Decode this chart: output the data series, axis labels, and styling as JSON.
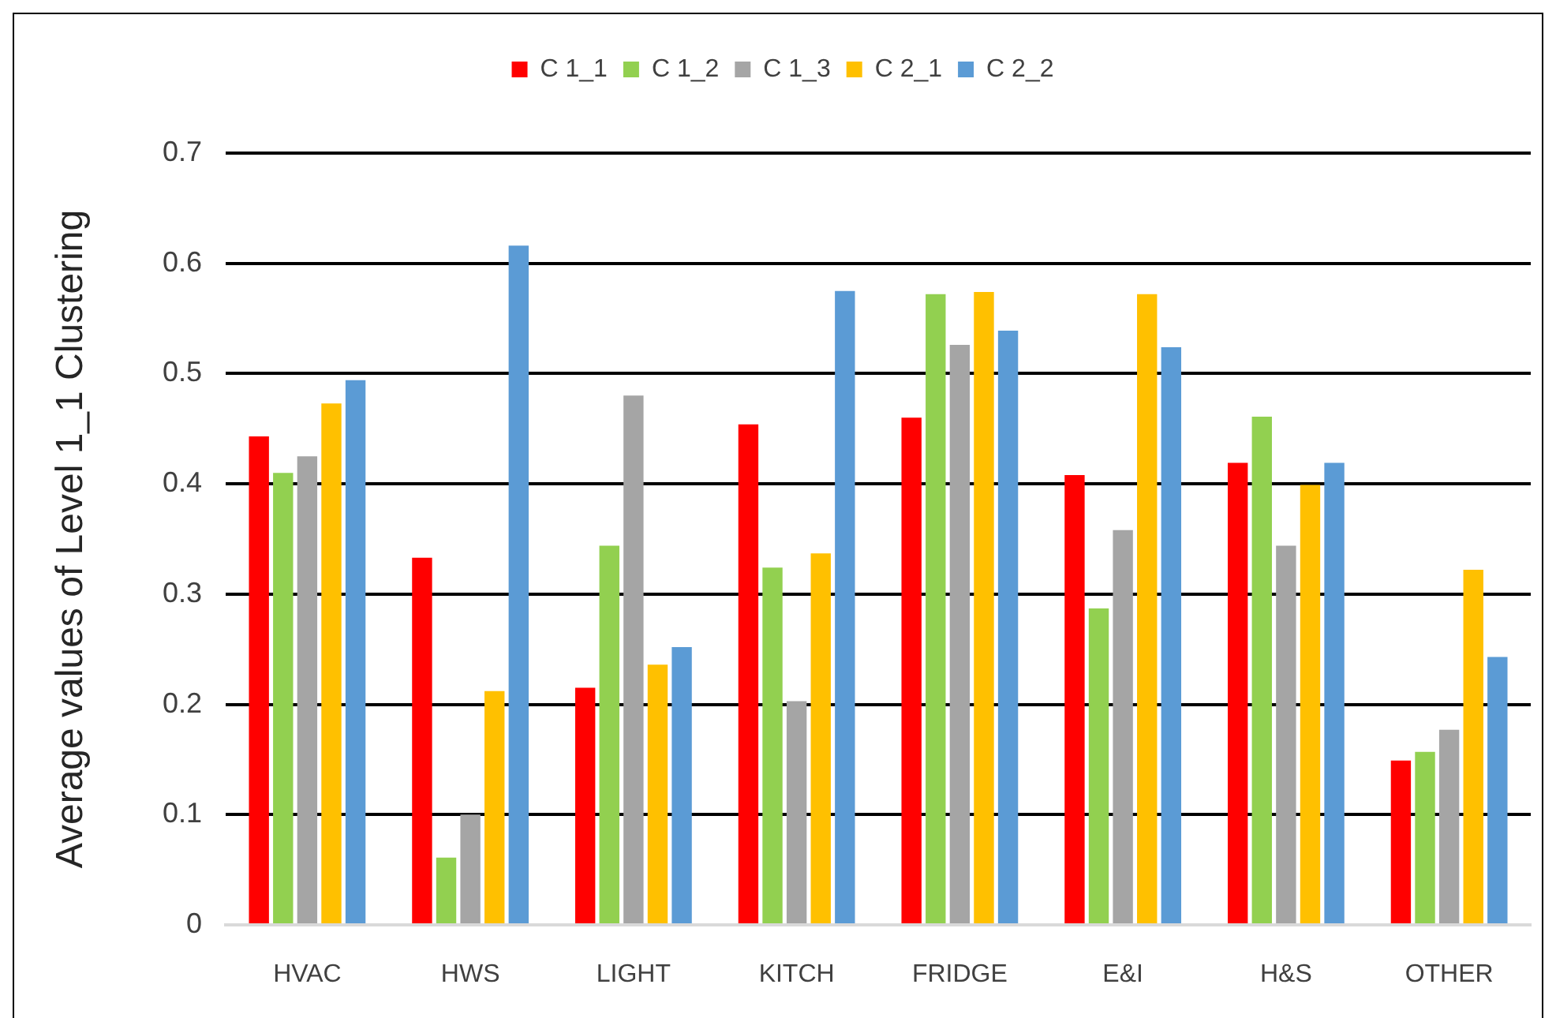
{
  "chart_data": {
    "type": "bar",
    "ylabel": "Average values of Level 1_1 Clustering",
    "categories": [
      "HVAC",
      "HWS",
      "LIGHT",
      "KITCH",
      "FRIDGE",
      "E&I",
      "H&S",
      "OTHER"
    ],
    "series": [
      {
        "name": "C 1_1",
        "color": "#ff0000",
        "values": [
          0.443,
          0.333,
          0.215,
          0.454,
          0.46,
          0.408,
          0.419,
          0.149
        ]
      },
      {
        "name": "C 1_2",
        "color": "#92d050",
        "values": [
          0.41,
          0.061,
          0.344,
          0.324,
          0.572,
          0.287,
          0.461,
          0.157
        ]
      },
      {
        "name": "C 1_3",
        "color": "#a5a5a5",
        "values": [
          0.425,
          0.1,
          0.48,
          0.203,
          0.526,
          0.358,
          0.344,
          0.177
        ]
      },
      {
        "name": "C 2_1",
        "color": "#ffc000",
        "values": [
          0.473,
          0.212,
          0.236,
          0.337,
          0.574,
          0.572,
          0.399,
          0.322
        ]
      },
      {
        "name": "C 2_2",
        "color": "#5b9bd5",
        "values": [
          0.494,
          0.616,
          0.252,
          0.575,
          0.539,
          0.524,
          0.419,
          0.243
        ]
      }
    ],
    "ylim": [
      0,
      0.7
    ],
    "yticks": [
      0,
      0.1,
      0.2,
      0.3,
      0.4,
      0.5,
      0.6,
      0.7
    ],
    "grid": "y",
    "legend": "top"
  }
}
